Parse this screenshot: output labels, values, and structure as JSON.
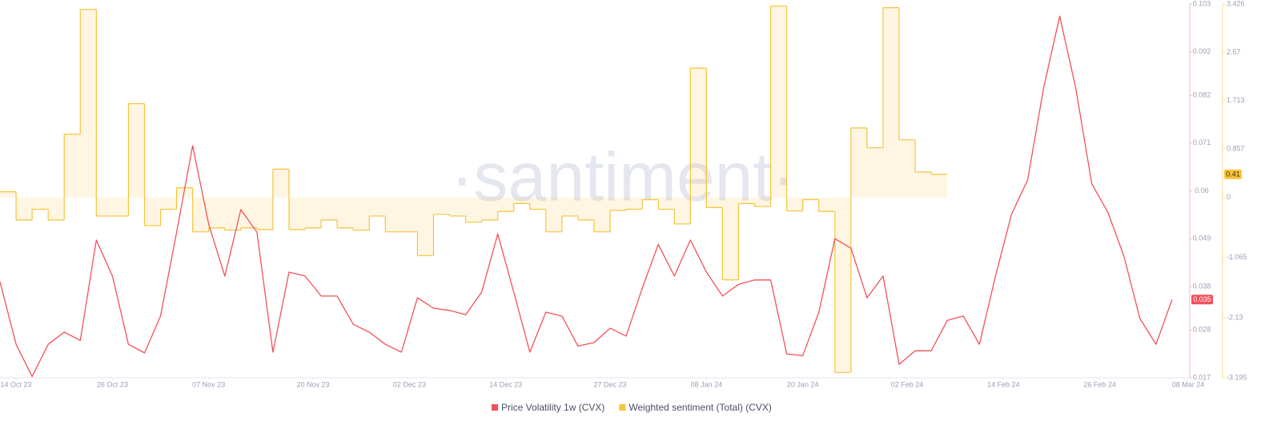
{
  "chart_data": {
    "type": "line",
    "watermark": "·santiment·",
    "x": [
      "2023-10-12",
      "2023-10-14",
      "2023-10-16",
      "2023-10-18",
      "2023-10-20",
      "2023-10-22",
      "2023-10-24",
      "2023-10-26",
      "2023-10-28",
      "2023-10-30",
      "2023-11-01",
      "2023-11-03",
      "2023-11-05",
      "2023-11-07",
      "2023-11-09",
      "2023-11-11",
      "2023-11-13",
      "2023-11-15",
      "2023-11-17",
      "2023-11-19",
      "2023-11-21",
      "2023-11-23",
      "2023-11-25",
      "2023-11-27",
      "2023-11-29",
      "2023-12-01",
      "2023-12-03",
      "2023-12-05",
      "2023-12-07",
      "2023-12-09",
      "2023-12-11",
      "2023-12-13",
      "2023-12-15",
      "2023-12-17",
      "2023-12-19",
      "2023-12-21",
      "2023-12-23",
      "2023-12-25",
      "2023-12-27",
      "2023-12-29",
      "2023-12-31",
      "2024-01-02",
      "2024-01-04",
      "2024-01-06",
      "2024-01-08",
      "2024-01-10",
      "2024-01-12",
      "2024-01-14",
      "2024-01-16",
      "2024-01-18",
      "2024-01-20",
      "2024-01-22",
      "2024-01-24",
      "2024-01-26",
      "2024-01-28",
      "2024-01-30",
      "2024-02-01",
      "2024-02-03",
      "2024-02-05",
      "2024-02-07",
      "2024-02-09",
      "2024-02-11",
      "2024-02-13",
      "2024-02-15",
      "2024-02-17",
      "2024-02-19",
      "2024-02-21",
      "2024-02-23",
      "2024-02-25",
      "2024-02-27",
      "2024-02-29",
      "2024-03-02",
      "2024-03-04",
      "2024-03-06"
    ],
    "xlim": [
      "2023-10-12",
      "2024-03-08"
    ],
    "xticks": [
      {
        "value": "2023-10-14",
        "label": "14 Oct 23"
      },
      {
        "value": "2023-10-26",
        "label": "26 Oct 23"
      },
      {
        "value": "2023-11-07",
        "label": "07 Nov 23"
      },
      {
        "value": "2023-11-20",
        "label": "20 Nov 23"
      },
      {
        "value": "2023-12-02",
        "label": "02 Dec 23"
      },
      {
        "value": "2023-12-14",
        "label": "14 Dec 23"
      },
      {
        "value": "2023-12-27",
        "label": "27 Dec 23"
      },
      {
        "value": "2024-01-08",
        "label": "08 Jan 24"
      },
      {
        "value": "2024-01-20",
        "label": "20 Jan 24"
      },
      {
        "value": "2024-02-02",
        "label": "02 Feb 24"
      },
      {
        "value": "2024-02-14",
        "label": "14 Feb 24"
      },
      {
        "value": "2024-02-26",
        "label": "26 Feb 24"
      },
      {
        "value": "2024-03-08",
        "label": "08 Mar 24"
      }
    ],
    "ylim": [
      0.017,
      0.103
    ],
    "yticks": [
      0.017,
      0.028,
      0.038,
      0.049,
      0.06,
      0.071,
      0.082,
      0.092,
      0.103
    ],
    "y2lim": [
      -3.195,
      3.426
    ],
    "y2ticks": [
      -3.195,
      -2.13,
      -1.065,
      0,
      0.857,
      1.713,
      2.57,
      3.426
    ],
    "series": [
      {
        "name": "Price Volatility 1w (CVX)",
        "color": "#f4505a",
        "values": [
          0.0391,
          0.0247,
          0.0173,
          0.0247,
          0.0275,
          0.0256,
          0.0487,
          0.0404,
          0.0247,
          0.0227,
          0.0312,
          0.0505,
          0.0704,
          0.0523,
          0.0404,
          0.0557,
          0.0505,
          0.0229,
          0.0413,
          0.0404,
          0.0358,
          0.0358,
          0.0293,
          0.0275,
          0.0247,
          0.0229,
          0.0354,
          0.033,
          0.0325,
          0.0315,
          0.0367,
          0.0501,
          0.0367,
          0.0229,
          0.0321,
          0.0312,
          0.0243,
          0.0251,
          0.0284,
          0.0266,
          0.0376,
          0.0477,
          0.0404,
          0.0487,
          0.0413,
          0.0358,
          0.0385,
          0.0395,
          0.0395,
          0.0225,
          0.0221,
          0.0321,
          0.049,
          0.0468,
          0.0354,
          0.0404,
          0.0201,
          0.0232,
          0.0232,
          0.0302,
          0.0312,
          0.0247,
          0.0404,
          0.0546,
          0.0625,
          0.0837,
          0.1002,
          0.0837,
          0.0616,
          0.0551,
          0.045,
          0.0306,
          0.0247,
          0.035
        ]
      },
      {
        "name": "Weighted sentiment (Total) (CVX)",
        "color": "#f7c33b",
        "axis": "y2",
        "values": [
          0.1,
          -0.4,
          -0.21,
          -0.4,
          1.12,
          3.33,
          -0.33,
          -0.33,
          1.66,
          -0.5,
          -0.21,
          0.17,
          -0.61,
          -0.54,
          -0.58,
          -0.54,
          -0.57,
          0.5,
          -0.57,
          -0.54,
          -0.4,
          -0.54,
          -0.58,
          -0.33,
          -0.61,
          -0.61,
          -1.03,
          -0.3,
          -0.33,
          -0.44,
          -0.4,
          -0.25,
          -0.11,
          -0.21,
          -0.61,
          -0.33,
          -0.4,
          -0.61,
          -0.23,
          -0.21,
          -0.04,
          -0.21,
          -0.47,
          2.29,
          -0.18,
          -1.46,
          -0.11,
          -0.16,
          3.39,
          -0.24,
          -0.04,
          -0.25,
          -3.1,
          1.23,
          0.88,
          3.36,
          1.02,
          0.45,
          0.41,
          null,
          null,
          null,
          null,
          null,
          null,
          null,
          null,
          null,
          null,
          null,
          null,
          null,
          null,
          null
        ]
      }
    ]
  }
}
